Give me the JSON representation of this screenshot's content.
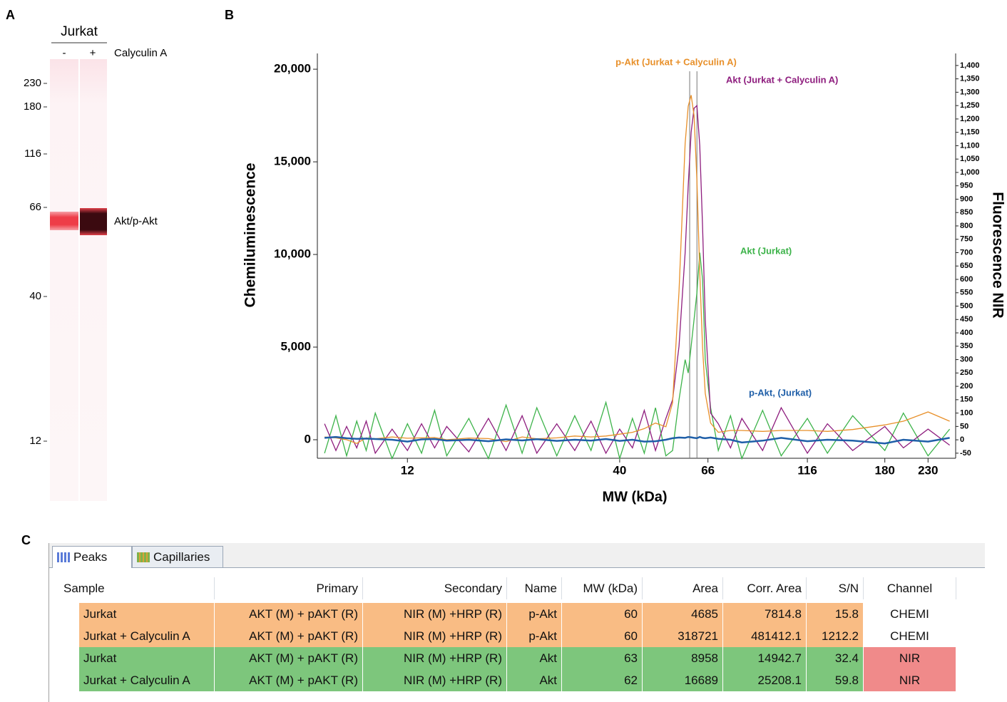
{
  "panel_a": {
    "letter": "A",
    "sample": "Jurkat",
    "lanes": [
      "-",
      "+"
    ],
    "treatment": "Calyculin A",
    "mw_ticks": [
      230,
      180,
      116,
      66,
      40,
      12
    ],
    "band_label": "Akt/p-Akt"
  },
  "chart_data": {
    "type": "line",
    "letter": "B",
    "x_label": "MW (kDa)",
    "y_label": "Chemiluminescence",
    "y2_label": "Fluorescence NIR",
    "xscale": "log",
    "xlim": [
      7.2,
      269
    ],
    "xticks": [
      12,
      40,
      66,
      116,
      180,
      230
    ],
    "ylim": [
      -1000,
      20850
    ],
    "yticks": [
      0,
      {
        "value": 5000,
        "label": "5,000"
      },
      {
        "value": 10000,
        "label": "10,000"
      },
      {
        "value": 15000,
        "label": "15,000"
      },
      {
        "value": 20000,
        "label": "20,000"
      }
    ],
    "y2lim": [
      -69,
      1445
    ],
    "y2ticks": [
      -50,
      0,
      50,
      100,
      150,
      200,
      250,
      300,
      350,
      400,
      450,
      500,
      550,
      600,
      650,
      700,
      750,
      800,
      850,
      900,
      950,
      {
        "value": 1000,
        "label": "1,000"
      },
      {
        "value": 1050,
        "label": "1,050"
      },
      {
        "value": 1100,
        "label": "1,100"
      },
      {
        "value": 1150,
        "label": "1,150"
      },
      {
        "value": 1200,
        "label": "1,200"
      },
      {
        "value": 1250,
        "label": "1,250"
      },
      {
        "value": 1300,
        "label": "1,300"
      },
      {
        "value": 1350,
        "label": "1,350"
      },
      {
        "value": 1400,
        "label": "1,400"
      }
    ],
    "x": [
      7.5,
      8,
      8.5,
      9,
      9.5,
      10,
      11,
      12,
      13,
      14,
      15,
      17,
      19,
      21,
      23,
      25,
      28,
      31,
      34,
      37,
      40,
      43,
      46,
      49,
      52,
      54,
      56,
      58,
      59,
      60,
      61,
      62,
      63,
      64,
      65,
      67,
      70,
      75,
      80,
      90,
      100,
      116,
      130,
      150,
      180,
      200,
      230,
      260
    ],
    "series": [
      {
        "name": "Akt (Jurkat)",
        "color": "#3db34a",
        "axis": "y2",
        "values": [
          -50,
          90,
          -60,
          70,
          -40,
          100,
          -70,
          60,
          -50,
          110,
          -60,
          80,
          -70,
          130,
          -50,
          120,
          -60,
          90,
          -40,
          140,
          -70,
          80,
          -50,
          120,
          -60,
          -40,
          150,
          300,
          250,
          350,
          450,
          550,
          700,
          600,
          300,
          120,
          -40,
          90,
          -70,
          110,
          -60,
          80,
          -50,
          90,
          -40,
          100,
          -60,
          40
        ]
      },
      {
        "name": "Akt (Jurkat + Calyculin A)",
        "color": "#8e1d7e",
        "axis": "y2",
        "values": [
          60,
          -40,
          50,
          -30,
          70,
          -50,
          40,
          -40,
          60,
          -30,
          50,
          -45,
          80,
          -40,
          90,
          -50,
          60,
          -40,
          70,
          -50,
          40,
          -30,
          110,
          -40,
          80,
          150,
          350,
          700,
          950,
          1150,
          1240,
          1250,
          1100,
          800,
          450,
          100,
          60,
          -30,
          80,
          -40,
          120,
          -50,
          60,
          -40,
          50,
          -30,
          40,
          -20
        ]
      },
      {
        "name": "p-Akt (Jurkat + Calyculin A)",
        "color": "#e8902a",
        "values": [
          150,
          100,
          0,
          -200,
          100,
          50,
          150,
          80,
          100,
          120,
          0,
          90,
          60,
          -100,
          150,
          50,
          100,
          200,
          150,
          200,
          300,
          400,
          600,
          900,
          700,
          2000,
          8000,
          16000,
          18000,
          18600,
          17500,
          14000,
          9000,
          5000,
          2500,
          900,
          400,
          500,
          500,
          450,
          500,
          500,
          450,
          550,
          800,
          1000,
          1500,
          1000
        ]
      },
      {
        "name": "p-Akt, (Jurkat)",
        "color": "#1f5fa8",
        "values": [
          100,
          150,
          80,
          50,
          60,
          40,
          0,
          -100,
          20,
          40,
          -50,
          0,
          -80,
          20,
          -40,
          30,
          -60,
          0,
          -50,
          40,
          -60,
          0,
          -100,
          -80,
          0,
          80,
          120,
          100,
          150,
          130,
          100,
          80,
          150,
          100,
          80,
          120,
          50,
          0,
          -150,
          -50,
          100,
          -80,
          0,
          -50,
          -200,
          0,
          -100,
          100
        ]
      }
    ],
    "peak_lines": [
      59.5,
      62
    ]
  },
  "table": {
    "letter": "C",
    "tabs": [
      "Peaks",
      "Capillaries"
    ],
    "columns": [
      "Sample",
      "Primary",
      "Secondary",
      "Name",
      "MW (kDa)",
      "Area",
      "Corr. Area",
      "S/N",
      "Channel"
    ],
    "rows": [
      [
        "Jurkat",
        "AKT (M) + pAKT (R)",
        "NIR (M) +HRP (R)",
        "p-Akt",
        "60",
        "4685",
        "7814.8",
        "15.8",
        "CHEMI"
      ],
      [
        "Jurkat + Calyculin A",
        "AKT (M) + pAKT (R)",
        "NIR (M) +HRP (R)",
        "p-Akt",
        "60",
        "318721",
        "481412.1",
        "1212.2",
        "CHEMI"
      ],
      [
        "Jurkat",
        "AKT (M) + pAKT (R)",
        "NIR (M) +HRP (R)",
        "Akt",
        "63",
        "8958",
        "14942.7",
        "32.4",
        "NIR"
      ],
      [
        "Jurkat + Calyculin A",
        "AKT (M) + pAKT (R)",
        "NIR (M) +HRP (R)",
        "Akt",
        "62",
        "16689",
        "25208.1",
        "59.8",
        "NIR"
      ]
    ],
    "row_colors": [
      "#f9bc84",
      "#f9bc84",
      "#7dc67c",
      "#7dc67c"
    ],
    "channel_colors": [
      "#ffffff",
      "#ffffff",
      "#f08a8a",
      "#f08a8a"
    ]
  }
}
